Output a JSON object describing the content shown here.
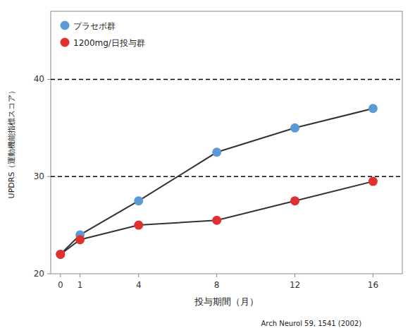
{
  "chart_data": {
    "type": "line",
    "x": [
      0,
      1,
      4,
      8,
      12,
      16
    ],
    "series": [
      {
        "name": "プラセボ群",
        "color": "#5b9bd5",
        "marker": "circle",
        "values": [
          22.0,
          24.0,
          27.5,
          32.5,
          35.0,
          37.0
        ]
      },
      {
        "name": "1200mg/日投与群",
        "color": "#e03030",
        "marker": "circle",
        "values": [
          22.0,
          23.5,
          25.0,
          25.5,
          27.5,
          29.5
        ]
      }
    ],
    "x_label": "投与期間（月）",
    "y_label": "UPDRS（運動機能指標スコア）",
    "xlim": [
      -0.5,
      17.5
    ],
    "ylim": [
      20,
      47
    ],
    "xticks": [
      0,
      1,
      4,
      8,
      12,
      16
    ],
    "yticks": [
      20,
      30,
      40
    ],
    "hlines": [
      30,
      40
    ],
    "legend": "upper left",
    "annotations": [
      "Arch Neurol 59, 1541 (2002)"
    ]
  }
}
